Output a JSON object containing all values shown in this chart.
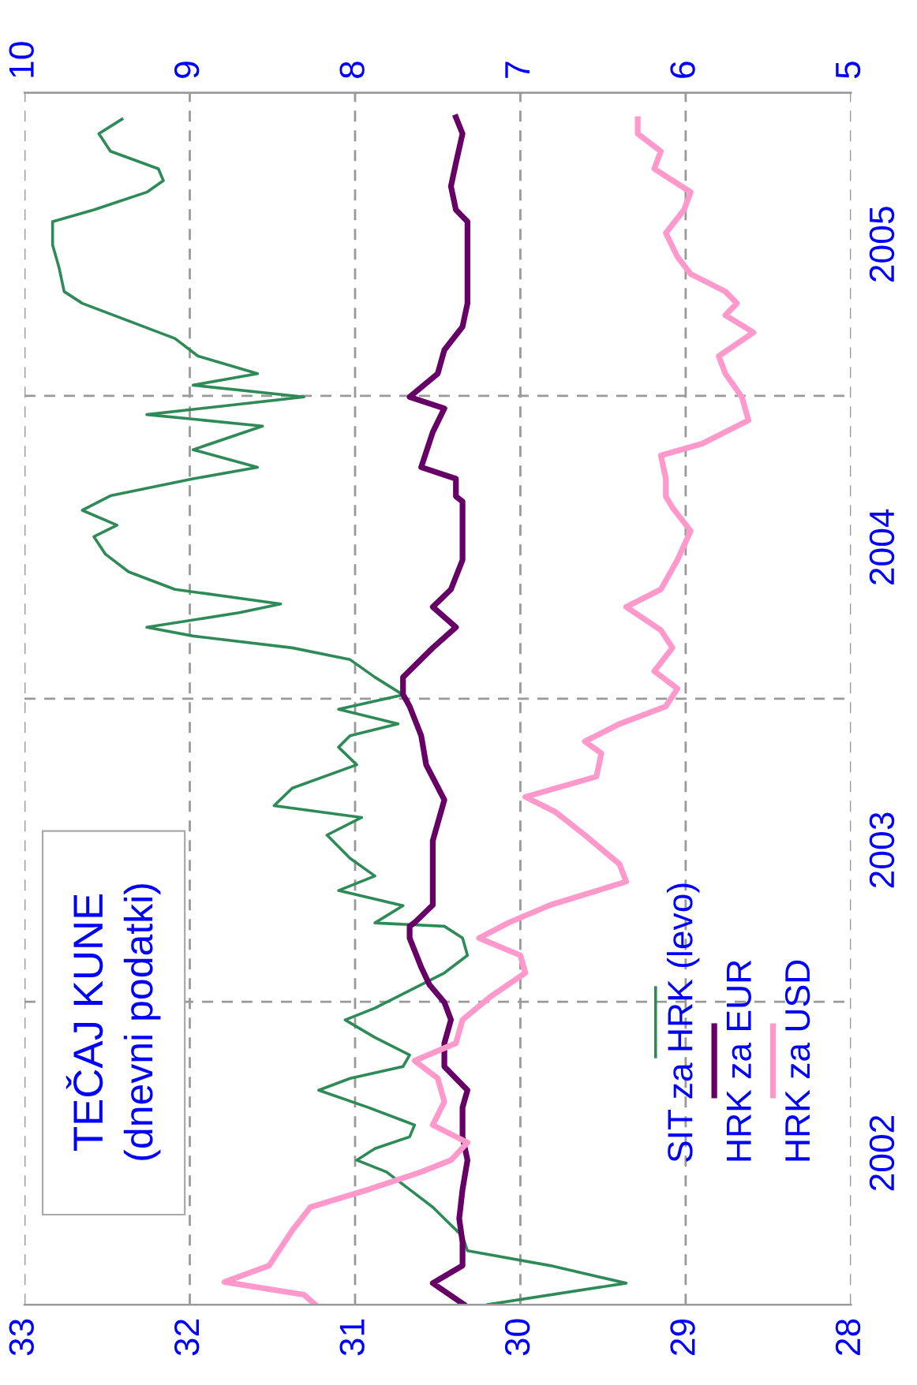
{
  "chart_data": {
    "type": "line",
    "title": "TEČAJ KUNE",
    "subtitle": "(dnevni podatki)",
    "ylim": [
      2002,
      2006
    ],
    "yticks": [
      {
        "value": 2003,
        "label": null
      },
      {
        "value": 2004,
        "label": null
      },
      {
        "value": 2005,
        "label": null
      },
      {
        "value": 2002.5,
        "label": "2002"
      },
      {
        "value": 2003.5,
        "label": "2003"
      },
      {
        "value": 2004.5,
        "label": "2004"
      },
      {
        "value": 2005.5,
        "label": "2005"
      }
    ],
    "xlim": [
      33,
      28
    ],
    "xticks": [
      33,
      32,
      31,
      30,
      29,
      28
    ],
    "x2lim": [
      10,
      5
    ],
    "x2ticks": [
      10,
      9,
      8,
      7,
      6,
      5
    ],
    "grid": true,
    "legend": "lower right",
    "series": [
      {
        "name": "SIT za HRK (levo)",
        "color": "#2e8b57",
        "values": [
          2002.0,
          2002.071,
          2002.129,
          2002.178,
          2002.226,
          2002.284,
          2002.322,
          2002.38,
          2002.438,
          2002.477,
          2002.515,
          2002.554,
          2002.593,
          2002.651,
          2002.708,
          2002.747,
          2002.786,
          2002.824,
          2002.882,
          2002.94,
          2002.979,
          2003.037,
          2003.095,
          2003.153,
          2003.21,
          2003.249,
          2003.26,
          2003.317,
          2003.367,
          2003.415,
          2003.473,
          2003.55,
          2003.608,
          2003.647,
          2003.705,
          2003.782,
          2003.84,
          2003.878,
          2003.917,
          2003.965,
          2004.013,
          2004.071,
          2004.129,
          2004.168,
          2004.207,
          2004.236,
          2004.284,
          2004.313,
          2004.361,
          2004.419,
          2004.477,
          2004.535,
          2004.573,
          2004.622,
          2004.67,
          2004.726,
          2004.764,
          2004.822,
          2004.9,
          2004.938,
          2004.996,
          2005.035,
          2005.073,
          2005.131,
          2005.189,
          2005.247,
          2005.305,
          2005.344,
          2005.421,
          2005.498,
          2005.575,
          2005.614,
          2005.672,
          2005.71,
          2005.749,
          2005.807,
          2005.865,
          2005.913
        ],
        "x": [
          30.2,
          29.36,
          29.82,
          30.32,
          30.35,
          30.46,
          30.53,
          30.67,
          30.81,
          30.99,
          30.88,
          30.67,
          30.64,
          30.92,
          31.22,
          31.03,
          30.71,
          30.67,
          30.88,
          31.06,
          30.88,
          30.67,
          30.46,
          30.32,
          30.35,
          30.46,
          30.88,
          30.71,
          31.1,
          30.88,
          31.03,
          31.17,
          30.96,
          31.49,
          31.38,
          30.99,
          31.1,
          31.03,
          30.74,
          31.1,
          30.71,
          30.88,
          31.03,
          31.38,
          31.98,
          32.26,
          31.7,
          31.45,
          32.09,
          32.37,
          32.51,
          32.58,
          32.44,
          32.65,
          32.48,
          31.98,
          31.59,
          31.98,
          31.56,
          32.26,
          31.31,
          31.98,
          31.59,
          31.95,
          32.09,
          32.37,
          32.65,
          32.76,
          32.79,
          32.83,
          32.83,
          32.58,
          32.26,
          32.16,
          32.19,
          32.48,
          32.55,
          32.41
        ]
      },
      {
        "name": "HRK za EUR",
        "color": "#660066",
        "axis": "x2",
        "values": [
          2002.0,
          2002.071,
          2002.129,
          2002.207,
          2002.284,
          2002.38,
          2002.477,
          2002.554,
          2002.651,
          2002.708,
          2002.786,
          2002.863,
          2002.94,
          2002.998,
          2003.056,
          2003.114,
          2003.21,
          2003.249,
          2003.261,
          2003.319,
          2003.434,
          2003.531,
          2003.666,
          2003.782,
          2003.878,
          2003.975,
          2004.014,
          2004.071,
          2004.168,
          2004.236,
          2004.303,
          2004.361,
          2004.458,
          2004.554,
          2004.651,
          2004.668,
          2004.726,
          2004.764,
          2004.88,
          2004.958,
          2004.996,
          2005.073,
          2005.151,
          2005.228,
          2005.305,
          2005.382,
          2005.479,
          2005.575,
          2005.614,
          2005.691,
          2005.768,
          2005.865,
          2005.919
        ],
        "x": [
          7.34,
          7.53,
          7.35,
          7.35,
          7.37,
          7.35,
          7.32,
          7.35,
          7.35,
          7.32,
          7.46,
          7.46,
          7.42,
          7.46,
          7.55,
          7.6,
          7.67,
          7.67,
          7.64,
          7.53,
          7.53,
          7.53,
          7.46,
          7.57,
          7.6,
          7.67,
          7.71,
          7.71,
          7.53,
          7.39,
          7.53,
          7.42,
          7.35,
          7.35,
          7.35,
          7.39,
          7.39,
          7.6,
          7.53,
          7.46,
          7.67,
          7.5,
          7.46,
          7.35,
          7.32,
          7.32,
          7.32,
          7.32,
          7.39,
          7.42,
          7.39,
          7.35,
          7.39
        ]
      },
      {
        "name": "HRK za USD",
        "color": "#ff99cc",
        "axis": "x2",
        "values": [
          2002.0,
          2002.033,
          2002.075,
          2002.129,
          2002.187,
          2002.245,
          2002.322,
          2002.38,
          2002.438,
          2002.477,
          2002.535,
          2002.593,
          2002.67,
          2002.747,
          2002.805,
          2002.863,
          2002.94,
          2003.017,
          2003.095,
          2003.153,
          2003.21,
          2003.261,
          2003.319,
          2003.396,
          2003.454,
          2003.55,
          2003.627,
          2003.676,
          2003.743,
          2003.82,
          2003.859,
          2003.917,
          2003.975,
          2004.033,
          2004.091,
          2004.168,
          2004.226,
          2004.303,
          2004.361,
          2004.458,
          2004.554,
          2004.631,
          2004.668,
          2004.726,
          2004.803,
          2004.842,
          2004.919,
          2004.996,
          2005.073,
          2005.131,
          2005.209,
          2005.266,
          2005.305,
          2005.344,
          2005.402,
          2005.459,
          2005.537,
          2005.614,
          2005.672,
          2005.749,
          2005.807,
          2005.865,
          2005.913
        ],
        "x": [
          8.24,
          8.31,
          8.79,
          8.52,
          8.45,
          8.38,
          8.27,
          7.92,
          7.6,
          7.42,
          7.32,
          7.53,
          7.46,
          7.5,
          7.64,
          7.39,
          7.35,
          7.18,
          6.97,
          7.0,
          7.25,
          7.07,
          6.82,
          6.36,
          6.4,
          6.61,
          6.79,
          6.97,
          6.54,
          6.51,
          6.61,
          6.4,
          6.12,
          6.05,
          6.19,
          6.08,
          6.15,
          6.36,
          6.15,
          6.05,
          5.97,
          6.08,
          6.12,
          6.12,
          6.15,
          5.9,
          5.62,
          5.66,
          5.76,
          5.8,
          5.59,
          5.76,
          5.69,
          5.76,
          5.97,
          6.05,
          6.12,
          6.01,
          5.97,
          6.19,
          6.15,
          6.29,
          6.29
        ]
      }
    ]
  }
}
